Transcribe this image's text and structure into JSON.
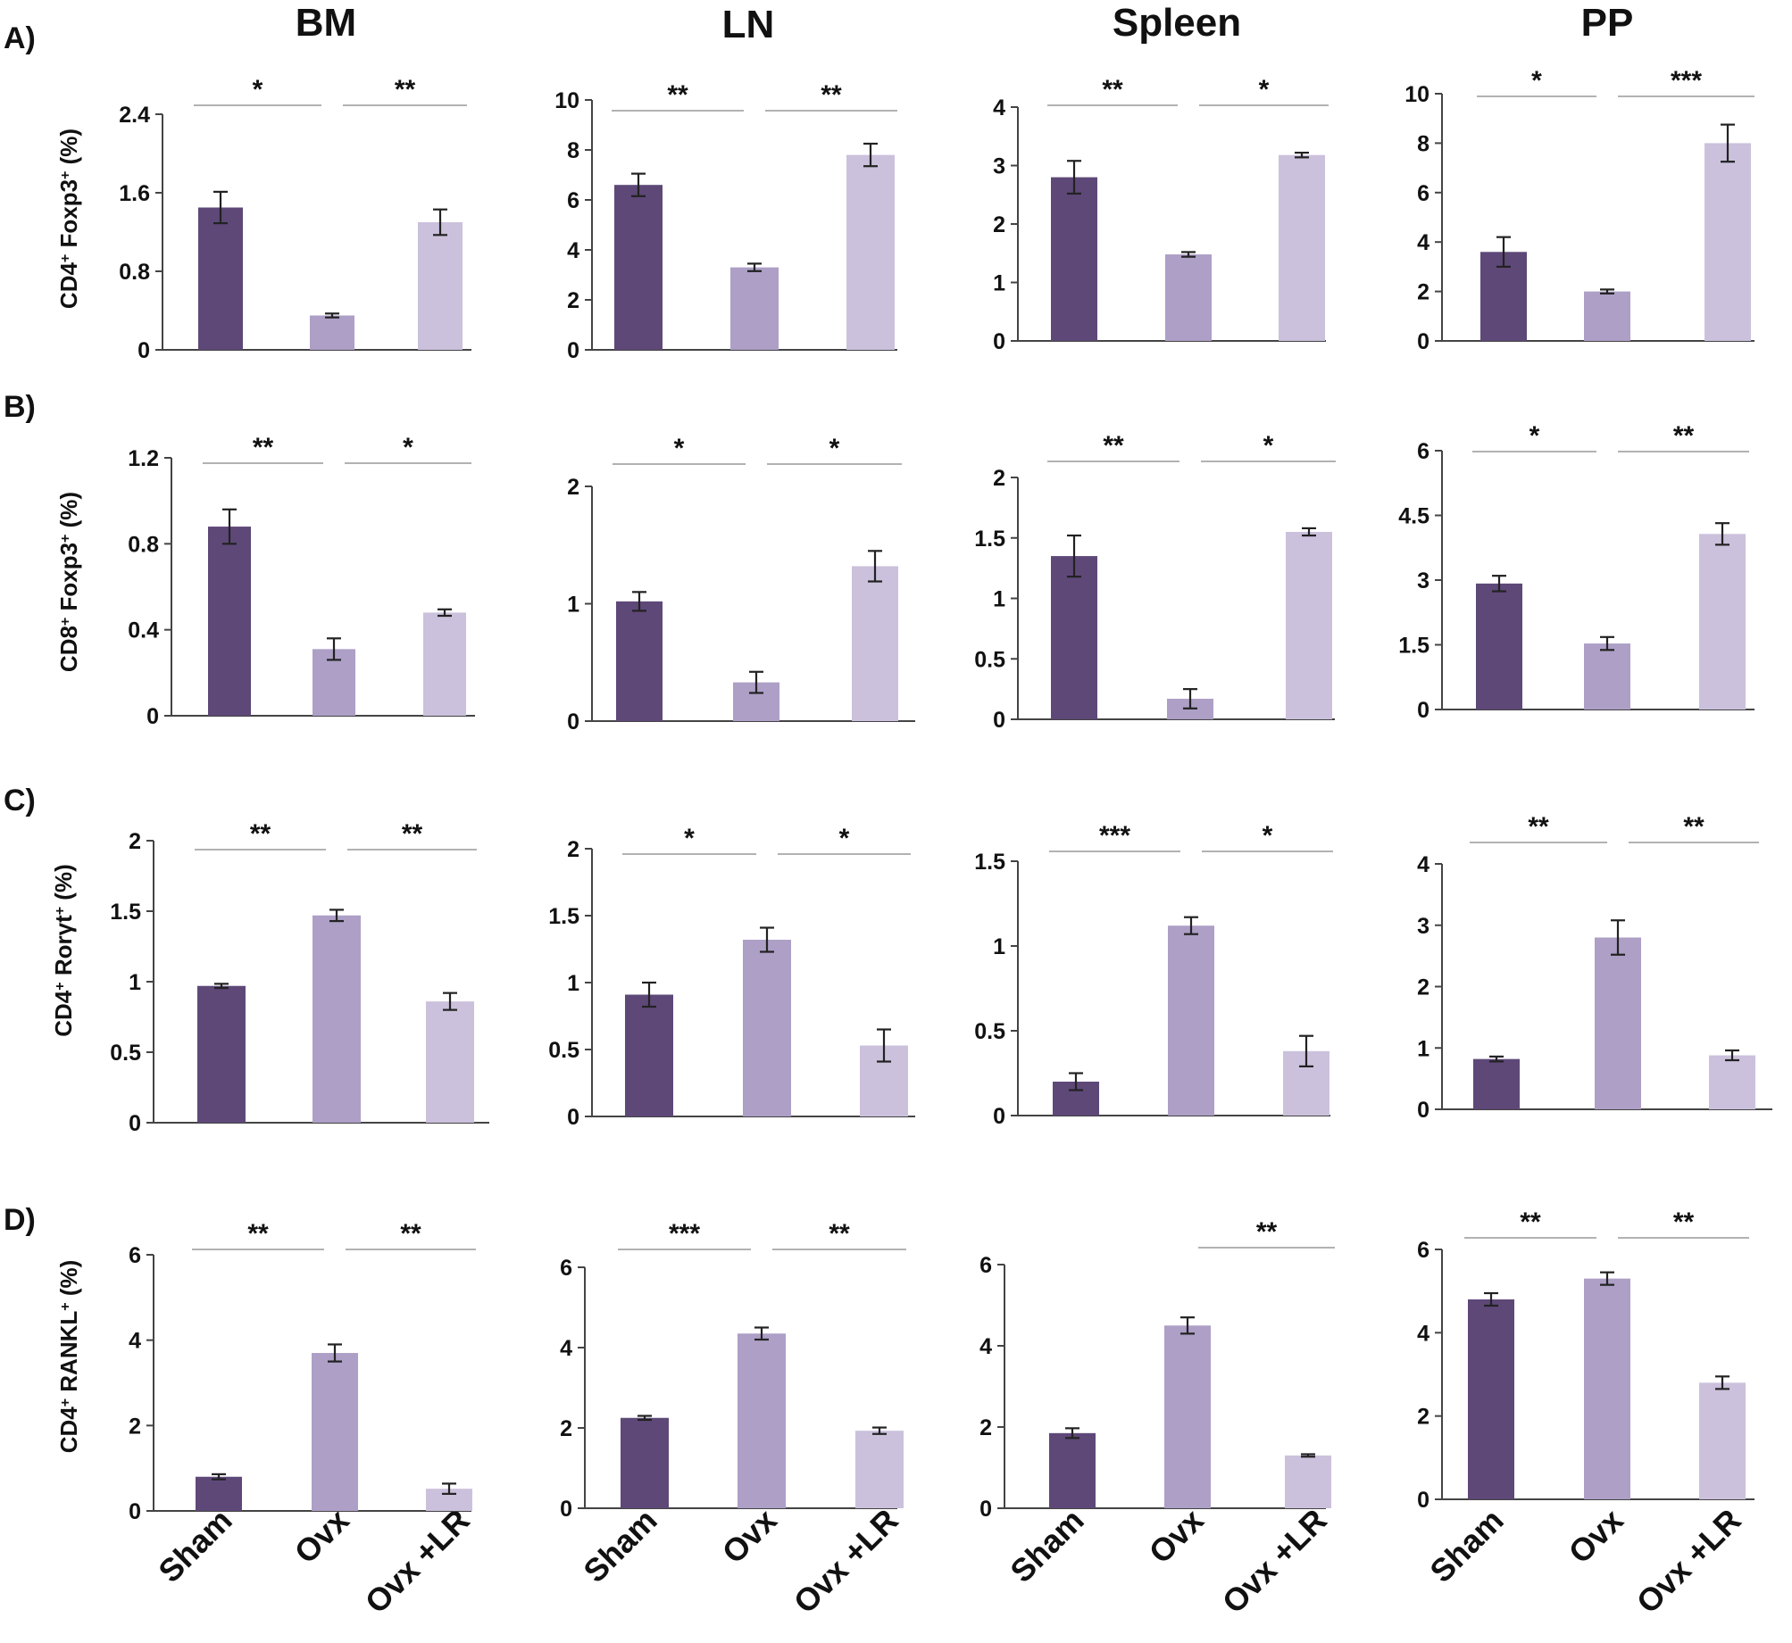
{
  "figure": {
    "column_titles": [
      "BM",
      "LN",
      "Spleen",
      "PP"
    ],
    "row_labels": [
      "A)",
      "B)",
      "C)",
      "D)"
    ],
    "y_labels": [
      {
        "main": "CD4",
        "sup1": "+",
        "mid": " Foxp3",
        "sup2": "+",
        "end": " (%)"
      },
      {
        "main": "CD8",
        "sup1": "+",
        "mid": " Foxp3",
        "sup2": "+",
        "end": " (%)"
      },
      {
        "main": "CD4",
        "sup1": "+",
        "mid": " Rorγt",
        "sup2": "+",
        "end": " (%)"
      },
      {
        "main": "CD4",
        "sup1": "+",
        "mid": " RANKL",
        "sup2": "+",
        "end": " (%)"
      }
    ],
    "groups": [
      "Sham",
      "Ovx",
      "Ovx +LR"
    ]
  },
  "colors": {
    "sham": "#5e4878",
    "ovx": "#ad9fc6",
    "ovx_lr": "#cbc1dc",
    "axis": "#444444",
    "sig_line": "#999999"
  },
  "chart_data": [
    {
      "type": "bar",
      "row": "A)",
      "title": "BM",
      "categories": [
        "Sham",
        "Ovx",
        "Ovx +LR"
      ],
      "values": [
        1.45,
        0.35,
        1.3
      ],
      "errors": [
        0.16,
        0.02,
        0.13
      ],
      "ylim": [
        0,
        2.4
      ],
      "ticks": [
        "0",
        "0.8",
        "1.6",
        "2.4"
      ],
      "tick_values": [
        0,
        0.8,
        1.6,
        2.4
      ],
      "significance": [
        "*",
        "**"
      ]
    },
    {
      "type": "bar",
      "row": "A)",
      "title": "LN",
      "categories": [
        "Sham",
        "Ovx",
        "Ovx +LR"
      ],
      "values": [
        6.6,
        3.3,
        7.8
      ],
      "errors": [
        0.45,
        0.15,
        0.45
      ],
      "ylim": [
        0,
        10
      ],
      "ticks": [
        "0",
        "2",
        "4",
        "6",
        "8",
        "10"
      ],
      "tick_values": [
        0,
        2,
        4,
        6,
        8,
        10
      ],
      "significance": [
        "**",
        "**"
      ]
    },
    {
      "type": "bar",
      "row": "A)",
      "title": "Spleen",
      "categories": [
        "Sham",
        "Ovx",
        "Ovx +LR"
      ],
      "values": [
        2.8,
        1.48,
        3.18
      ],
      "errors": [
        0.28,
        0.04,
        0.04
      ],
      "ylim": [
        0,
        4
      ],
      "ticks": [
        "0",
        "1",
        "2",
        "3",
        "4"
      ],
      "tick_values": [
        0,
        1,
        2,
        3,
        4
      ],
      "significance": [
        "**",
        "*"
      ]
    },
    {
      "type": "bar",
      "row": "A)",
      "title": "PP",
      "categories": [
        "Sham",
        "Ovx",
        "Ovx +LR"
      ],
      "values": [
        3.6,
        2.0,
        8.0
      ],
      "errors": [
        0.6,
        0.08,
        0.75
      ],
      "ylim": [
        0,
        10
      ],
      "ticks": [
        "0",
        "2",
        "4",
        "6",
        "8",
        "10"
      ],
      "tick_values": [
        0,
        2,
        4,
        6,
        8,
        10
      ],
      "significance": [
        "*",
        "***"
      ]
    },
    {
      "type": "bar",
      "row": "B)",
      "title": "BM",
      "categories": [
        "Sham",
        "Ovx",
        "Ovx +LR"
      ],
      "values": [
        0.88,
        0.31,
        0.48
      ],
      "errors": [
        0.08,
        0.05,
        0.015
      ],
      "ylim": [
        0,
        1.2
      ],
      "ticks": [
        "0",
        "0.4",
        "0.8",
        "1.2"
      ],
      "tick_values": [
        0,
        0.4,
        0.8,
        1.2
      ],
      "significance": [
        "**",
        "*"
      ]
    },
    {
      "type": "bar",
      "row": "B)",
      "title": "LN",
      "categories": [
        "Sham",
        "Ovx",
        "Ovx +LR"
      ],
      "values": [
        1.02,
        0.33,
        1.32
      ],
      "errors": [
        0.08,
        0.09,
        0.13
      ],
      "ylim": [
        0,
        2
      ],
      "ticks": [
        "0",
        "1",
        "2"
      ],
      "tick_values": [
        0,
        1,
        2
      ],
      "significance": [
        "*",
        "*"
      ]
    },
    {
      "type": "bar",
      "row": "B)",
      "title": "Spleen",
      "categories": [
        "Sham",
        "Ovx",
        "Ovx +LR"
      ],
      "values": [
        1.35,
        0.17,
        1.55
      ],
      "errors": [
        0.17,
        0.08,
        0.03
      ],
      "ylim": [
        0,
        2
      ],
      "ticks": [
        "0",
        "0.5",
        "1",
        "1.5",
        "2"
      ],
      "tick_values": [
        0,
        0.5,
        1,
        1.5,
        2
      ],
      "significance": [
        "**",
        "*"
      ]
    },
    {
      "type": "bar",
      "row": "B)",
      "title": "PP",
      "categories": [
        "Sham",
        "Ovx",
        "Ovx +LR"
      ],
      "values": [
        2.92,
        1.53,
        4.07
      ],
      "errors": [
        0.18,
        0.15,
        0.25
      ],
      "ylim": [
        0,
        6
      ],
      "ticks": [
        "0",
        "1.5",
        "3",
        "4.5",
        "6"
      ],
      "tick_values": [
        0,
        1.5,
        3,
        4.5,
        6
      ],
      "significance": [
        "*",
        "**"
      ]
    },
    {
      "type": "bar",
      "row": "C)",
      "title": "BM",
      "categories": [
        "Sham",
        "Ovx",
        "Ovx +LR"
      ],
      "values": [
        0.97,
        1.47,
        0.86
      ],
      "errors": [
        0.015,
        0.04,
        0.06
      ],
      "ylim": [
        0,
        2
      ],
      "ticks": [
        "0",
        "0.5",
        "1",
        "1.5",
        "2"
      ],
      "tick_values": [
        0,
        0.5,
        1,
        1.5,
        2
      ],
      "significance": [
        "**",
        "**"
      ]
    },
    {
      "type": "bar",
      "row": "C)",
      "title": "LN",
      "categories": [
        "Sham",
        "Ovx",
        "Ovx +LR"
      ],
      "values": [
        0.91,
        1.32,
        0.53
      ],
      "errors": [
        0.09,
        0.09,
        0.12
      ],
      "ylim": [
        0,
        2
      ],
      "ticks": [
        "0",
        "0.5",
        "1",
        "1.5",
        "2"
      ],
      "tick_values": [
        0,
        0.5,
        1,
        1.5,
        2
      ],
      "significance": [
        "*",
        "*"
      ]
    },
    {
      "type": "bar",
      "row": "C)",
      "title": "Spleen",
      "categories": [
        "Sham",
        "Ovx",
        "Ovx +LR"
      ],
      "values": [
        0.2,
        1.12,
        0.38
      ],
      "errors": [
        0.05,
        0.05,
        0.09
      ],
      "ylim": [
        0,
        1.5
      ],
      "ticks": [
        "0",
        "0.5",
        "1",
        "1.5"
      ],
      "tick_values": [
        0,
        0.5,
        1,
        1.5
      ],
      "significance": [
        "***",
        "*"
      ]
    },
    {
      "type": "bar",
      "row": "C)",
      "title": "PP",
      "categories": [
        "Sham",
        "Ovx",
        "Ovx +LR"
      ],
      "values": [
        0.82,
        2.8,
        0.88
      ],
      "errors": [
        0.04,
        0.28,
        0.08
      ],
      "ylim": [
        0,
        4
      ],
      "ticks": [
        "0",
        "1",
        "2",
        "3",
        "4"
      ],
      "tick_values": [
        0,
        1,
        2,
        3,
        4
      ],
      "significance": [
        "**",
        "**"
      ]
    },
    {
      "type": "bar",
      "row": "D)",
      "title": "BM",
      "categories": [
        "Sham",
        "Ovx",
        "Ovx +LR"
      ],
      "values": [
        0.8,
        3.7,
        0.52
      ],
      "errors": [
        0.06,
        0.2,
        0.12
      ],
      "ylim": [
        0,
        6
      ],
      "ticks": [
        "0",
        "2",
        "4",
        "6"
      ],
      "tick_values": [
        0,
        2,
        4,
        6
      ],
      "significance": [
        "**",
        "**"
      ]
    },
    {
      "type": "bar",
      "row": "D)",
      "title": "LN",
      "categories": [
        "Sham",
        "Ovx",
        "Ovx +LR"
      ],
      "values": [
        2.25,
        4.35,
        1.93
      ],
      "errors": [
        0.05,
        0.15,
        0.08
      ],
      "ylim": [
        0,
        6
      ],
      "ticks": [
        "0",
        "2",
        "4",
        "6"
      ],
      "tick_values": [
        0,
        2,
        4,
        6
      ],
      "significance": [
        "***",
        "**"
      ]
    },
    {
      "type": "bar",
      "row": "D)",
      "title": "Spleen",
      "categories": [
        "Sham",
        "Ovx",
        "Ovx +LR"
      ],
      "values": [
        1.85,
        4.5,
        1.3
      ],
      "errors": [
        0.12,
        0.2,
        0.03
      ],
      "ylim": [
        0,
        6
      ],
      "ticks": [
        "0",
        "2",
        "4",
        "6"
      ],
      "tick_values": [
        0,
        2,
        4,
        6
      ],
      "significance": [
        "",
        "**"
      ]
    },
    {
      "type": "bar",
      "row": "D)",
      "title": "PP",
      "categories": [
        "Sham",
        "Ovx",
        "Ovx +LR"
      ],
      "values": [
        4.8,
        5.3,
        2.8
      ],
      "errors": [
        0.15,
        0.15,
        0.15
      ],
      "ylim": [
        0,
        6
      ],
      "ticks": [
        "0",
        "2",
        "4",
        "6"
      ],
      "tick_values": [
        0,
        2,
        4,
        6
      ],
      "significance": [
        "**",
        "**"
      ]
    }
  ]
}
